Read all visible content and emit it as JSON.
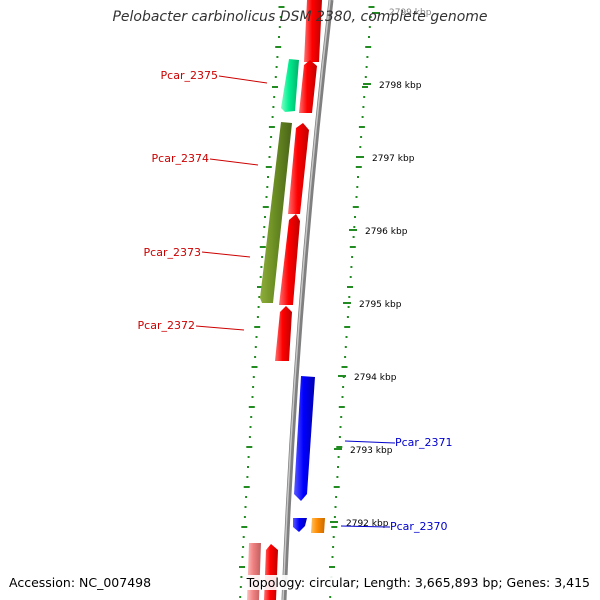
{
  "title": "Pelobacter carbinolicus DSM 2380, complete genome",
  "footer": {
    "accession": "Accession: NC_007498",
    "summary": "Topology: circular; Length: 3,665,893 bp; Genes: 3,415"
  },
  "colors": {
    "forward_gene": "#ff0000",
    "reverse_gene_dark_green": "#6b8e23",
    "reverse_gene_aquamarine": "#00ee90",
    "forward_gene_blue": "#0000ff",
    "forward_gene_orange": "#ff8c00",
    "pseudogene_pink": "#f08080",
    "backbone": "#808080",
    "dot_ticks": "#228b22",
    "label_red": "#cc0000",
    "label_blue": "#0000cc"
  },
  "scale_ticks": [
    {
      "label": "2799 kbp"
    },
    {
      "label": "2798 kbp"
    },
    {
      "label": "2797 kbp"
    },
    {
      "label": "2796 kbp"
    },
    {
      "label": "2795 kbp"
    },
    {
      "label": "2794 kbp"
    },
    {
      "label": "2793 kbp"
    },
    {
      "label": "2792 kbp"
    }
  ],
  "gene_labels": [
    {
      "name": "Pcar_2375",
      "color": "red"
    },
    {
      "name": "Pcar_2374",
      "color": "red"
    },
    {
      "name": "Pcar_2373",
      "color": "red"
    },
    {
      "name": "Pcar_2372",
      "color": "red"
    },
    {
      "name": "Pcar_2371",
      "color": "blue"
    },
    {
      "name": "Pcar_2370",
      "color": "blue"
    }
  ]
}
